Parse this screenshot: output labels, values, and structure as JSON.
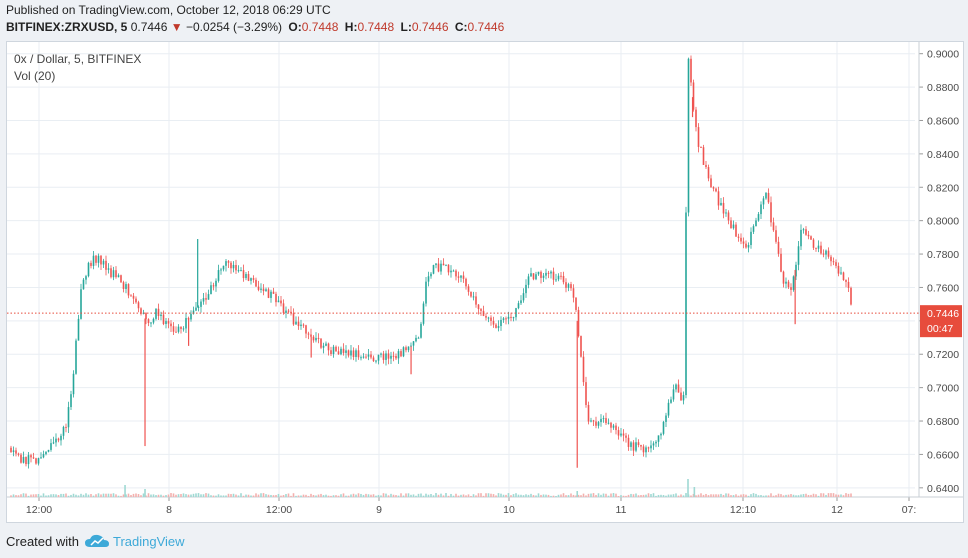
{
  "header": {
    "published": "Published on TradingView.com, October 12, 2018 06:29 UTC",
    "symbol": "BITFINEX:ZRXUSD, 5",
    "last_price": "0.7446",
    "change_arrow": "▼",
    "change": "−0.0254 (−3.29%)",
    "ohlc": [
      {
        "label": "O:",
        "value": "0.7448"
      },
      {
        "label": "H:",
        "value": "0.7448"
      },
      {
        "label": "L:",
        "value": "0.7446"
      },
      {
        "label": "C:",
        "value": "0.7446"
      }
    ]
  },
  "legend": {
    "series_title": "0x / Dollar, 5, BITFINEX",
    "volume": "Vol (20)"
  },
  "price_tag": {
    "price": "0.7446",
    "countdown": "00:47"
  },
  "footer": {
    "created_with": "Created with",
    "brand": "TradingView"
  },
  "colors": {
    "up": "#26a69a",
    "down": "#ef5350",
    "grid": "#e9eef3",
    "axis_text": "#4a4a4a",
    "price_line": "#e74c3c",
    "brand": "#3da9d8"
  },
  "chart_data": {
    "type": "candlestick",
    "y_ticks": [
      "0.9000",
      "0.8800",
      "0.8600",
      "0.8400",
      "0.8200",
      "0.8000",
      "0.7800",
      "0.7600",
      "0.7400",
      "0.7200",
      "0.7000",
      "0.6800",
      "0.6600",
      "0.6400"
    ],
    "ylim": [
      0.6345,
      0.907
    ],
    "x_ticks": [
      "12:00",
      "8",
      "12:00",
      "9",
      "10",
      "11",
      "12:10",
      "12",
      "07:"
    ],
    "current_price": 0.7446,
    "grid": true,
    "path": [
      [
        0.0,
        0.664
      ],
      [
        0.01,
        0.658
      ],
      [
        0.035,
        0.656
      ],
      [
        0.05,
        0.667
      ],
      [
        0.065,
        0.675
      ],
      [
        0.07,
        0.695
      ],
      [
        0.075,
        0.72
      ],
      [
        0.078,
        0.74
      ],
      [
        0.082,
        0.76
      ],
      [
        0.09,
        0.775
      ],
      [
        0.1,
        0.778
      ],
      [
        0.11,
        0.77
      ],
      [
        0.12,
        0.768
      ],
      [
        0.13,
        0.76
      ],
      [
        0.14,
        0.755
      ],
      [
        0.155,
        0.738
      ],
      [
        0.165,
        0.745
      ],
      [
        0.18,
        0.735
      ],
      [
        0.195,
        0.738
      ],
      [
        0.21,
        0.748
      ],
      [
        0.225,
        0.76
      ],
      [
        0.24,
        0.775
      ],
      [
        0.255,
        0.77
      ],
      [
        0.27,
        0.762
      ],
      [
        0.285,
        0.758
      ],
      [
        0.3,
        0.75
      ],
      [
        0.32,
        0.738
      ],
      [
        0.34,
        0.728
      ],
      [
        0.36,
        0.722
      ],
      [
        0.38,
        0.72
      ],
      [
        0.4,
        0.718
      ],
      [
        0.42,
        0.719
      ],
      [
        0.44,
        0.722
      ],
      [
        0.455,
        0.73
      ],
      [
        0.46,
        0.76
      ],
      [
        0.47,
        0.773
      ],
      [
        0.49,
        0.77
      ],
      [
        0.505,
        0.762
      ],
      [
        0.52,
        0.745
      ],
      [
        0.54,
        0.738
      ],
      [
        0.555,
        0.742
      ],
      [
        0.565,
        0.75
      ],
      [
        0.575,
        0.768
      ],
      [
        0.59,
        0.767
      ],
      [
        0.61,
        0.766
      ],
      [
        0.625,
        0.755
      ],
      [
        0.632,
        0.72
      ],
      [
        0.64,
        0.68
      ],
      [
        0.66,
        0.68
      ],
      [
        0.675,
        0.67
      ],
      [
        0.69,
        0.665
      ],
      [
        0.705,
        0.662
      ],
      [
        0.72,
        0.672
      ],
      [
        0.73,
        0.695
      ],
      [
        0.738,
        0.7
      ],
      [
        0.745,
        0.692
      ],
      [
        0.75,
        0.898
      ],
      [
        0.76,
        0.85
      ],
      [
        0.77,
        0.83
      ],
      [
        0.785,
        0.81
      ],
      [
        0.8,
        0.795
      ],
      [
        0.815,
        0.785
      ],
      [
        0.825,
        0.8
      ],
      [
        0.835,
        0.82
      ],
      [
        0.845,
        0.79
      ],
      [
        0.855,
        0.765
      ],
      [
        0.865,
        0.76
      ],
      [
        0.875,
        0.795
      ],
      [
        0.89,
        0.785
      ],
      [
        0.905,
        0.778
      ],
      [
        0.915,
        0.77
      ],
      [
        0.925,
        0.762
      ],
      [
        0.932,
        0.745
      ]
    ],
    "spikes": [
      [
        0.152,
        0.665,
        "down"
      ],
      [
        0.2,
        0.725,
        "down"
      ],
      [
        0.21,
        0.789,
        "up"
      ],
      [
        0.335,
        0.718,
        "down"
      ],
      [
        0.445,
        0.708,
        "down"
      ],
      [
        0.628,
        0.652,
        "down"
      ],
      [
        0.755,
        0.862,
        "down"
      ],
      [
        0.868,
        0.738,
        "down"
      ]
    ]
  }
}
